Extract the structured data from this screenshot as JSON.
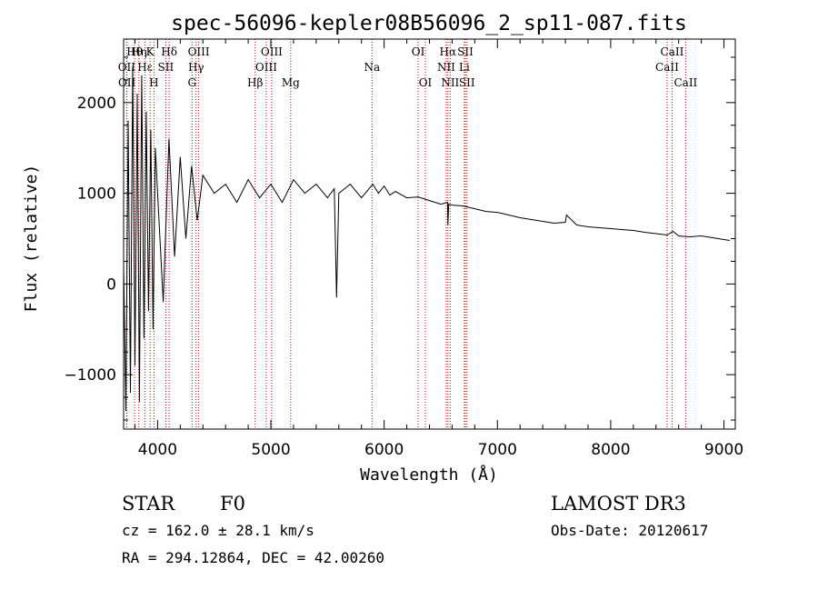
{
  "chart_data": {
    "type": "line",
    "title": "spec-56096-kepler08B56096_2_sp11-087.fits",
    "xlabel": "Wavelength (Å)",
    "ylabel": "Flux (relative)",
    "xlim": [
      3700,
      9100
    ],
    "ylim": [
      -1600,
      2700
    ],
    "x_ticks": [
      4000,
      5000,
      6000,
      7000,
      8000,
      9000
    ],
    "y_ticks": [
      -1000,
      0,
      1000,
      2000
    ],
    "series": [
      {
        "name": "flux",
        "x": [
          3700,
          3720,
          3740,
          3760,
          3780,
          3800,
          3820,
          3840,
          3860,
          3880,
          3900,
          3920,
          3940,
          3960,
          3980,
          4000,
          4050,
          4100,
          4150,
          4200,
          4250,
          4300,
          4350,
          4400,
          4500,
          4600,
          4700,
          4800,
          4900,
          5000,
          5100,
          5200,
          5300,
          5400,
          5500,
          5560,
          5580,
          5600,
          5700,
          5800,
          5900,
          5950,
          6000,
          6050,
          6100,
          6200,
          6300,
          6400,
          6500,
          6560,
          6563,
          6570,
          6600,
          6700,
          6800,
          6900,
          7000,
          7100,
          7200,
          7300,
          7400,
          7500,
          7600,
          7610,
          7700,
          7800,
          7900,
          8000,
          8100,
          8200,
          8300,
          8400,
          8500,
          8550,
          8600,
          8700,
          8800,
          8900,
          9000,
          9050
        ],
        "y": [
          200,
          -1400,
          1800,
          -1200,
          2400,
          -900,
          2100,
          -1300,
          2300,
          -600,
          1900,
          -300,
          1700,
          -500,
          1500,
          1000,
          -200,
          1600,
          300,
          1400,
          500,
          1300,
          700,
          1200,
          1000,
          1100,
          900,
          1150,
          950,
          1100,
          900,
          1150,
          1000,
          1100,
          950,
          1050,
          -150,
          1000,
          1100,
          950,
          1100,
          1000,
          1080,
          980,
          1020,
          950,
          960,
          920,
          880,
          900,
          650,
          880,
          870,
          860,
          830,
          800,
          790,
          760,
          730,
          710,
          690,
          670,
          680,
          760,
          650,
          630,
          620,
          610,
          600,
          590,
          570,
          555,
          540,
          580,
          530,
          520,
          530,
          510,
          490,
          480
        ]
      }
    ],
    "line_markers": [
      {
        "label": "Hθ",
        "x": 3797,
        "row": 1
      },
      {
        "label": "Hη",
        "x": 3835,
        "row": 1
      },
      {
        "label": "K",
        "x": 3934,
        "row": 1
      },
      {
        "label": "Hδ",
        "x": 4102,
        "row": 1
      },
      {
        "label": "OIII",
        "x": 4363,
        "row": 1
      },
      {
        "label": "OIII",
        "x": 5007,
        "row": 1
      },
      {
        "label": "OI",
        "x": 6300,
        "row": 1
      },
      {
        "label": "Hα",
        "x": 6563,
        "row": 1
      },
      {
        "label": "SII",
        "x": 6717,
        "row": 1
      },
      {
        "label": "CaII",
        "x": 8542,
        "row": 1
      },
      {
        "label": "OII",
        "x": 3727,
        "row": 2
      },
      {
        "label": "Hε",
        "x": 3889,
        "row": 2
      },
      {
        "label": "SII",
        "x": 4072,
        "row": 2
      },
      {
        "label": "Hγ",
        "x": 4340,
        "row": 2
      },
      {
        "label": "OIII",
        "x": 4959,
        "row": 2
      },
      {
        "label": "Na",
        "x": 5893,
        "row": 2
      },
      {
        "label": "NII",
        "x": 6548,
        "row": 2
      },
      {
        "label": "Li",
        "x": 6708,
        "row": 2
      },
      {
        "label": "CaII",
        "x": 8498,
        "row": 2
      },
      {
        "label": "OII",
        "x": 3729,
        "row": 3
      },
      {
        "label": "H",
        "x": 3968,
        "row": 3
      },
      {
        "label": "G",
        "x": 4304,
        "row": 3
      },
      {
        "label": "Hβ",
        "x": 4861,
        "row": 3
      },
      {
        "label": "Mg",
        "x": 5175,
        "row": 3
      },
      {
        "label": "OI",
        "x": 6364,
        "row": 3
      },
      {
        "label": "NII",
        "x": 6583,
        "row": 3
      },
      {
        "label": "SII",
        "x": 6731,
        "row": 3
      },
      {
        "label": "CaII",
        "x": 8662,
        "row": 3
      }
    ]
  },
  "info": {
    "class": "STAR",
    "subclass": "F0",
    "survey": "LAMOST DR3",
    "cz": "cz = 162.0 ± 28.1 km/s",
    "obs_date": "Obs-Date: 20120617",
    "coords": "RA = 294.12864, DEC =  42.00260"
  },
  "colors": {
    "line_marker": "#cc0000",
    "spectrum": "#000000"
  }
}
